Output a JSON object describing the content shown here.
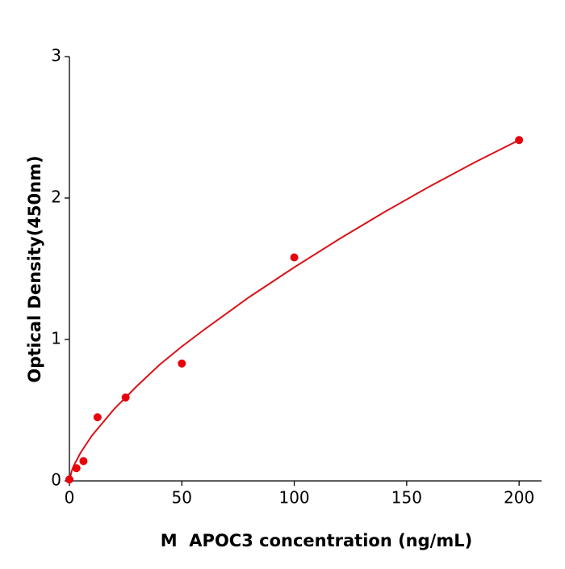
{
  "chart_data": {
    "type": "scatter",
    "xlabel": "M  APOC3 concentration (ng/mL)",
    "ylabel": "Optical Density(450nm)",
    "xlim": [
      0,
      210
    ],
    "xticks": [
      0,
      50,
      100,
      150,
      200
    ],
    "ylim": [
      0,
      3
    ],
    "yticks": [
      0,
      1,
      2,
      3
    ],
    "series": [
      {
        "type": "scatter",
        "color": "#e8000b",
        "x": [
          0,
          3.125,
          6.25,
          12.5,
          25,
          50,
          100,
          200
        ],
        "values": [
          0.01,
          0.09,
          0.14,
          0.45,
          0.59,
          0.83,
          1.58,
          2.41
        ]
      },
      {
        "type": "line",
        "color": "#d81418",
        "x": [
          0,
          1,
          2,
          5,
          10,
          20,
          30,
          40,
          50,
          60,
          80,
          100,
          120,
          140,
          160,
          180,
          200
        ],
        "values": [
          0,
          0.07,
          0.11,
          0.2,
          0.32,
          0.51,
          0.67,
          0.82,
          0.95,
          1.07,
          1.3,
          1.51,
          1.71,
          1.9,
          2.08,
          2.25,
          2.41
        ]
      }
    ]
  }
}
